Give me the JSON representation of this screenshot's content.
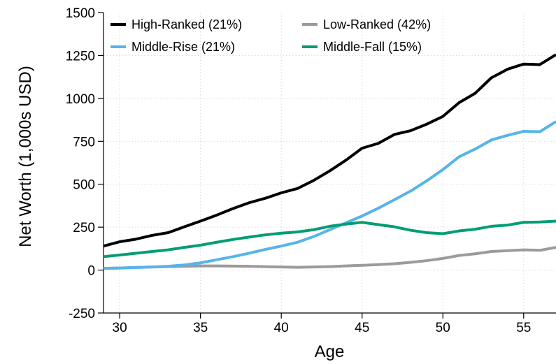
{
  "chart_data": {
    "type": "line",
    "title": "",
    "xlabel": "Age",
    "ylabel": "Net Worth (1,000s USD)",
    "xlim": [
      29,
      57
    ],
    "ylim": [
      -250,
      1500
    ],
    "xticks": [
      30,
      35,
      40,
      45,
      50,
      55
    ],
    "yticks": [
      -250,
      0,
      250,
      500,
      750,
      1000,
      1250,
      1500
    ],
    "grid": true,
    "legend": "top-left",
    "x": [
      29,
      30,
      31,
      32,
      33,
      34,
      35,
      36,
      37,
      38,
      39,
      40,
      41,
      42,
      43,
      44,
      45,
      46,
      47,
      48,
      49,
      50,
      51,
      52,
      53,
      54,
      55,
      56,
      57
    ],
    "series": [
      {
        "name": "High-Ranked (21%)",
        "color": "#000000",
        "values": [
          140,
          165,
          180,
          202,
          218,
          252,
          285,
          320,
          358,
          392,
          418,
          450,
          475,
          522,
          578,
          640,
          710,
          738,
          790,
          812,
          850,
          895,
          975,
          1030,
          1120,
          1170,
          1200,
          1197,
          1255
        ]
      },
      {
        "name": "Low-Ranked (42%)",
        "color": "#9b9b9b",
        "values": [
          10,
          12,
          15,
          18,
          20,
          22,
          24,
          24,
          23,
          22,
          20,
          18,
          16,
          18,
          20,
          24,
          28,
          32,
          37,
          45,
          55,
          68,
          85,
          95,
          108,
          113,
          118,
          115,
          132
        ]
      },
      {
        "name": "Middle-Rise (21%)",
        "color": "#56b4e9",
        "values": [
          10,
          12,
          15,
          18,
          22,
          30,
          42,
          60,
          78,
          98,
          120,
          140,
          162,
          195,
          235,
          275,
          315,
          360,
          410,
          460,
          520,
          585,
          660,
          705,
          758,
          785,
          808,
          806,
          865
        ]
      },
      {
        "name": "Middle-Fall (15%)",
        "color": "#009e73",
        "values": [
          78,
          88,
          98,
          108,
          118,
          132,
          145,
          162,
          178,
          192,
          205,
          215,
          222,
          235,
          255,
          268,
          278,
          265,
          252,
          232,
          218,
          212,
          228,
          238,
          255,
          262,
          278,
          280,
          285
        ]
      }
    ]
  }
}
